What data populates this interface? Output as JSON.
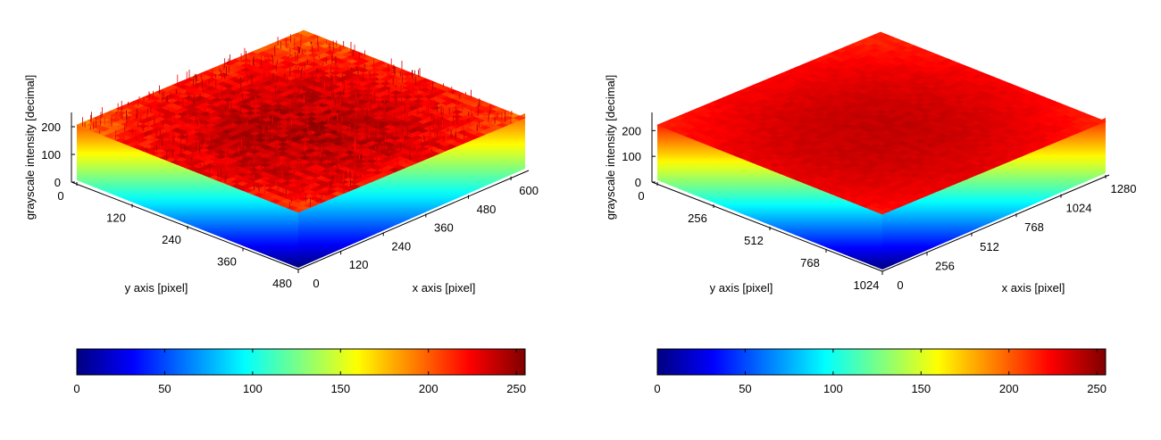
{
  "chart_data": [
    {
      "type": "surface3d",
      "title": "",
      "xlabel": "x axis [pixel]",
      "ylabel": "y axis [pixel]",
      "zlabel": "grayscale intensity [decimal]",
      "x_ticks": [
        0,
        120,
        240,
        360,
        480,
        600
      ],
      "y_ticks": [
        0,
        120,
        240,
        360,
        480
      ],
      "z_ticks": [
        0,
        100,
        200
      ],
      "xlim": [
        0,
        640
      ],
      "ylim": [
        0,
        480
      ],
      "zlim": [
        0,
        255
      ],
      "surface": {
        "edge_level": 200,
        "center_level": 242,
        "noise": "high",
        "darkest_region": "center"
      },
      "colorbar": {
        "colormap": "jet",
        "ticks": [
          0,
          50,
          100,
          150,
          200,
          250
        ],
        "range": [
          0,
          255
        ]
      }
    },
    {
      "type": "surface3d",
      "title": "",
      "xlabel": "x axis [pixel]",
      "ylabel": "y axis [pixel]",
      "zlabel": "grayscale intensity [decimal]",
      "x_ticks": [
        0,
        256,
        512,
        768,
        1024,
        1280
      ],
      "y_ticks": [
        0,
        256,
        512,
        768,
        1024
      ],
      "z_ticks": [
        0,
        100,
        200
      ],
      "xlim": [
        0,
        1280
      ],
      "ylim": [
        0,
        1024
      ],
      "zlim": [
        0,
        255
      ],
      "surface": {
        "edge_level": 215,
        "center_level": 238,
        "noise": "low",
        "darkest_region": "center"
      },
      "colorbar": {
        "colormap": "jet",
        "ticks": [
          0,
          50,
          100,
          150,
          200,
          250
        ],
        "range": [
          0,
          255
        ]
      }
    }
  ]
}
